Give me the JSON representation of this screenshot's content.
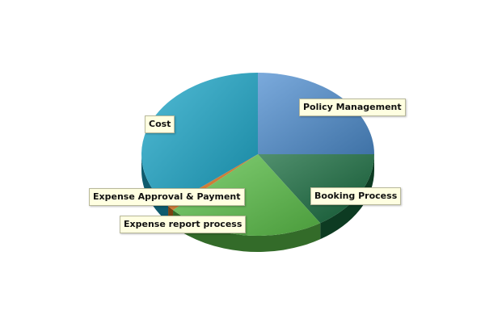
{
  "chart_data": {
    "type": "pie",
    "style": "3d",
    "slices": [
      {
        "label": "Policy Management",
        "value": 25,
        "color": "#4f8ed0"
      },
      {
        "label": "Booking Process",
        "value": 16,
        "color": "#176b3e"
      },
      {
        "label": "Expense report process",
        "value": 22,
        "color": "#5cc24a"
      },
      {
        "label": "Expense Approval & Payment",
        "value": 1,
        "color": "#e07820"
      },
      {
        "label": "Cost",
        "value": 36,
        "color": "#1aa6c8"
      }
    ],
    "legend": "none"
  }
}
